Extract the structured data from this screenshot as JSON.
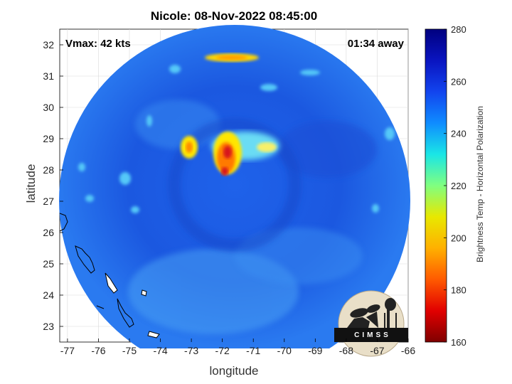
{
  "title": "Nicole: 08-Nov-2022 08:45:00",
  "vmax_label": "Vmax: 42 kts",
  "time_label": "01:34 away",
  "xlabel": "longitude",
  "ylabel": "latitude",
  "colorbar_label": "Brightness Temp - Horizontal Polarization",
  "logo_text": "CIMSS",
  "x_ticks": [
    -77,
    -76,
    -75,
    -74,
    -73,
    -72,
    -71,
    -70,
    -69,
    -68,
    -67,
    -66
  ],
  "y_ticks": [
    23,
    24,
    25,
    26,
    27,
    28,
    29,
    30,
    31,
    32
  ],
  "colorbar_ticks": [
    160,
    180,
    200,
    220,
    240,
    260,
    280
  ],
  "colors": {
    "background_field": "#1a5fe6",
    "cold_core": "#d7191c",
    "warm_band": "#ffd700"
  },
  "map_extent": {
    "lon": [
      -77.25,
      -66.0
    ],
    "lat": [
      22.5,
      32.5
    ]
  },
  "storm_center": {
    "lon": -71.9,
    "lat": 28.05
  }
}
